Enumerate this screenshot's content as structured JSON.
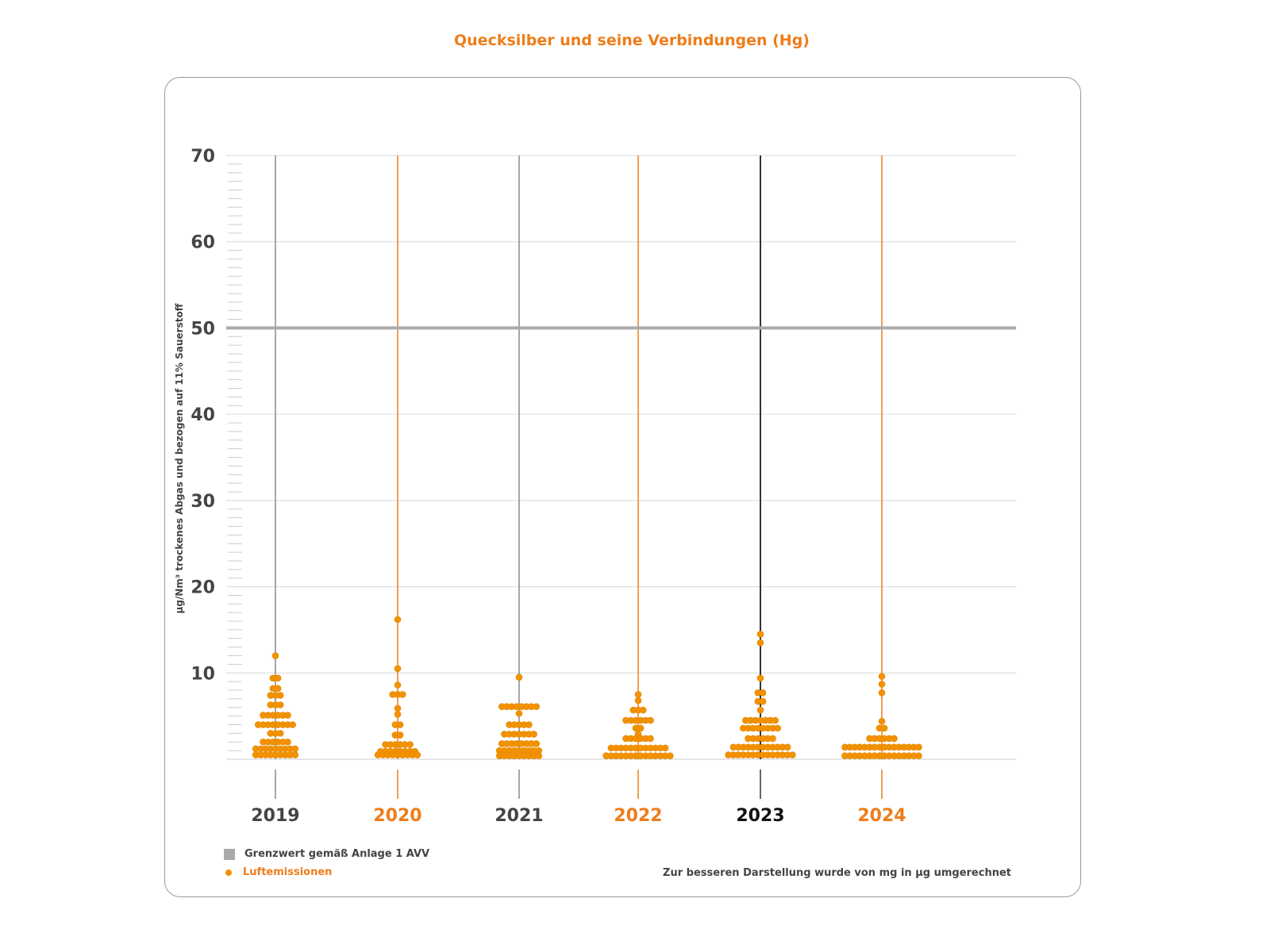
{
  "title": "Quecksilber und seine Verbindungen  (Hg)",
  "note": "Zur besseren Darstellung wurde von mg in µg umgerechnet",
  "legend": {
    "limit": "Grenzwert gemäß Anlage 1 AVV",
    "emissions": "Luftemissionen"
  },
  "colors": {
    "orange": "#ee7d1a",
    "dot": "#f39200",
    "gray": "#aaaaaa",
    "dark": "#333333"
  },
  "chart_data": {
    "type": "scatter",
    "title": "Quecksilber und seine Verbindungen  (Hg)",
    "ylabel": "µg/Nm³ trockenes Abgas und bezogen auf 11% Sauerstoff",
    "ylim": [
      0,
      70
    ],
    "yticks": [
      "10",
      "20",
      "30",
      "40",
      "50",
      "60",
      "70"
    ],
    "limit_value": 50,
    "categories": [
      "2019",
      "2020",
      "2021",
      "2022",
      "2023",
      "2024"
    ],
    "series": [
      {
        "name": "2019",
        "points": [
          [
            12.0,
            1
          ],
          [
            9.4,
            2
          ],
          [
            8.2,
            2
          ],
          [
            7.4,
            3
          ],
          [
            6.3,
            3
          ],
          [
            5.1,
            6
          ],
          [
            4.0,
            8
          ],
          [
            3.0,
            3
          ],
          [
            2.0,
            6
          ],
          [
            1.2,
            9
          ],
          [
            0.5,
            9
          ]
        ]
      },
      {
        "name": "2020",
        "points": [
          [
            16.2,
            1
          ],
          [
            10.5,
            1
          ],
          [
            8.6,
            1
          ],
          [
            7.5,
            3
          ],
          [
            5.9,
            1
          ],
          [
            5.2,
            1
          ],
          [
            4.0,
            2
          ],
          [
            2.8,
            2
          ],
          [
            1.7,
            6
          ],
          [
            0.9,
            8
          ],
          [
            0.5,
            9
          ]
        ]
      },
      {
        "name": "2021",
        "points": [
          [
            9.5,
            1
          ],
          [
            6.1,
            8
          ],
          [
            5.3,
            1
          ],
          [
            4.0,
            5
          ],
          [
            2.9,
            7
          ],
          [
            1.8,
            8
          ],
          [
            1.0,
            9
          ],
          [
            0.4,
            9
          ]
        ]
      },
      {
        "name": "2022",
        "points": [
          [
            7.5,
            1
          ],
          [
            6.8,
            1
          ],
          [
            5.7,
            3
          ],
          [
            4.5,
            6
          ],
          [
            3.6,
            2
          ],
          [
            2.9,
            1
          ],
          [
            2.4,
            6
          ],
          [
            1.3,
            12
          ],
          [
            0.4,
            14
          ]
        ]
      },
      {
        "name": "2023",
        "points": [
          [
            14.5,
            1
          ],
          [
            13.5,
            1
          ],
          [
            9.4,
            1
          ],
          [
            7.7,
            2
          ],
          [
            6.7,
            2
          ],
          [
            5.7,
            1
          ],
          [
            4.5,
            7
          ],
          [
            3.6,
            8
          ],
          [
            2.4,
            6
          ],
          [
            1.4,
            12
          ],
          [
            0.5,
            14
          ]
        ]
      },
      {
        "name": "2024",
        "points": [
          [
            9.6,
            1
          ],
          [
            8.7,
            1
          ],
          [
            7.7,
            1
          ],
          [
            4.4,
            1
          ],
          [
            3.6,
            2
          ],
          [
            2.4,
            6
          ],
          [
            1.4,
            16
          ],
          [
            0.4,
            16
          ]
        ]
      }
    ],
    "line_colors": [
      "#888888",
      "#ee7d1a",
      "#888888",
      "#ee7d1a",
      "#333333",
      "#ee7d1a"
    ],
    "label_colors": [
      "#444444",
      "#ee7d1a",
      "#444444",
      "#ee7d1a",
      "#111111",
      "#ee7d1a"
    ],
    "legend_position": "bottom-left"
  }
}
